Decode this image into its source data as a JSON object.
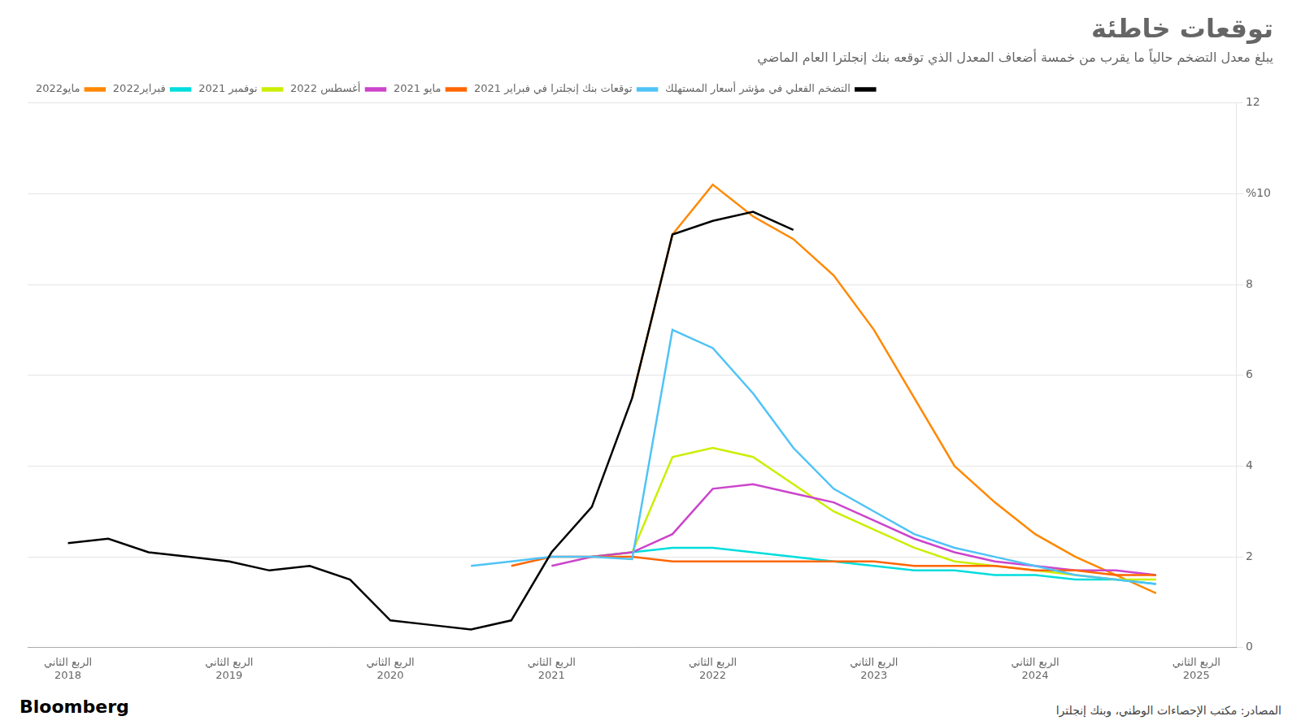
{
  "chart_data": {
    "type": "line",
    "title": "توقعات خاطئة",
    "subtitle": "يبلغ معدل التضخم حالياً ما يقرب من خمسة أضعاف المعدل الذي توقعه بنك إنجلترا العام الماضي",
    "annotations": [
      "Bloomberg",
      "المصادر: مكتب الإحصاءات الوطني، وبنك إنجلترا"
    ],
    "xlim": [
      2018.25,
      2025.75
    ],
    "xticks": [
      {
        "value": 2018.5,
        "label": "الربع الثاني\n2018"
      },
      {
        "value": 2019.5,
        "label": "الربع الثاني\n2019"
      },
      {
        "value": 2020.5,
        "label": "الربع الثاني\n2020"
      },
      {
        "value": 2021.5,
        "label": "الربع الثاني\n2021"
      },
      {
        "value": 2022.5,
        "label": "الربع الثاني\n2022"
      },
      {
        "value": 2023.5,
        "label": "الربع الثاني\n2023"
      },
      {
        "value": 2024.5,
        "label": "الربع الثاني\n2024"
      },
      {
        "value": 2025.5,
        "label": "الربع الثاني\n2025"
      }
    ],
    "ylim": [
      0,
      12
    ],
    "yticks": [
      0,
      2,
      4,
      6,
      8,
      {
        "value": 10,
        "label": "%10"
      },
      12
    ],
    "grid": "y",
    "legend": "upper right",
    "series": [
      {
        "name": "التضخم الفعلي في مؤشر أسعار المستهلك",
        "color": "#000000",
        "x": [
          2018.5,
          2018.75,
          2019.0,
          2019.25,
          2019.5,
          2019.75,
          2020.0,
          2020.25,
          2020.5,
          2020.75,
          2021.0,
          2021.25,
          2021.5,
          2021.75,
          2022.0,
          2022.25,
          2022.5,
          2022.75,
          2023.0
        ],
        "values": [
          2.3,
          2.4,
          2.1,
          2.0,
          1.9,
          1.7,
          1.8,
          1.5,
          0.6,
          0.5,
          0.4,
          0.6,
          2.1,
          3.1,
          5.5,
          9.1,
          9.4,
          9.6,
          9.2
        ]
      },
      {
        "name": "توقعات بنك إنجلترا في فبراير 2021",
        "color": "#4fc3f7",
        "x": [
          2021.0,
          2021.25,
          2021.5,
          2021.75,
          2022.0,
          2022.25,
          2022.5,
          2022.75,
          2023.0,
          2023.25,
          2023.5,
          2023.75,
          2024.0,
          2024.25,
          2024.5,
          2024.75,
          2025.0,
          2025.25
        ],
        "values": [
          1.8,
          1.9,
          2.0,
          2.0,
          1.95,
          7.0,
          6.6,
          5.6,
          4.4,
          3.5,
          3.0,
          2.5,
          2.2,
          2.0,
          1.8,
          1.6,
          1.5,
          1.4
        ]
      },
      {
        "name": "مايو 2021",
        "color": "#ff6600",
        "x": [
          2021.25,
          2021.5,
          2021.75,
          2022.0,
          2022.25,
          2022.5,
          2022.75,
          2023.0,
          2023.25,
          2023.5,
          2023.75,
          2024.0,
          2024.25,
          2024.5,
          2024.75,
          2025.0,
          2025.25
        ],
        "values": [
          1.8,
          2.0,
          2.0,
          2.0,
          1.9,
          1.9,
          1.9,
          1.9,
          1.9,
          1.9,
          1.8,
          1.8,
          1.8,
          1.7,
          1.7,
          1.6,
          1.6
        ]
      },
      {
        "name": "أغسطس 2022",
        "color": "#cc44cc",
        "x": [
          2021.5,
          2021.75,
          2022.0,
          2022.25,
          2022.5,
          2022.75,
          2023.0,
          2023.25,
          2023.5,
          2023.75,
          2024.0,
          2024.25,
          2024.5,
          2024.75,
          2025.0,
          2025.25
        ],
        "values": [
          1.8,
          2.0,
          2.1,
          2.5,
          3.5,
          3.6,
          3.4,
          3.2,
          2.8,
          2.4,
          2.1,
          1.9,
          1.8,
          1.7,
          1.7,
          1.6
        ]
      },
      {
        "name": "نوفمبر 2021",
        "color": "#ccee00",
        "x": [
          2021.75,
          2022.0,
          2022.25,
          2022.5,
          2022.75,
          2023.0,
          2023.25,
          2023.5,
          2023.75,
          2024.0,
          2024.25,
          2024.5,
          2024.75,
          2025.0,
          2025.25
        ],
        "values": [
          2.0,
          2.1,
          4.2,
          4.4,
          4.2,
          3.6,
          3.0,
          2.6,
          2.2,
          1.9,
          1.8,
          1.7,
          1.6,
          1.5,
          1.5
        ]
      },
      {
        "name": "فبراير2022",
        "color": "#00dddd",
        "x": [
          2021.75,
          2022.0,
          2022.25,
          2022.5,
          2022.75,
          2023.0,
          2023.25,
          2023.5,
          2023.75,
          2024.0,
          2024.25,
          2024.5,
          2024.75,
          2025.0,
          2025.25
        ],
        "values": [
          2.0,
          2.1,
          2.2,
          2.2,
          2.1,
          2.0,
          1.9,
          1.8,
          1.7,
          1.7,
          1.6,
          1.6,
          1.5,
          1.5,
          1.4
        ]
      },
      {
        "name": "مايو2022",
        "color": "#ff8800",
        "x": [
          2022.0,
          2022.25,
          2022.5,
          2022.75,
          2023.0,
          2023.25,
          2023.5,
          2023.75,
          2024.0,
          2024.25,
          2024.5,
          2024.75,
          2025.0,
          2025.25
        ],
        "values": [
          5.5,
          9.1,
          10.2,
          9.5,
          9.0,
          8.2,
          7.0,
          5.5,
          4.0,
          3.2,
          2.5,
          2.0,
          1.6,
          1.2
        ]
      }
    ]
  }
}
